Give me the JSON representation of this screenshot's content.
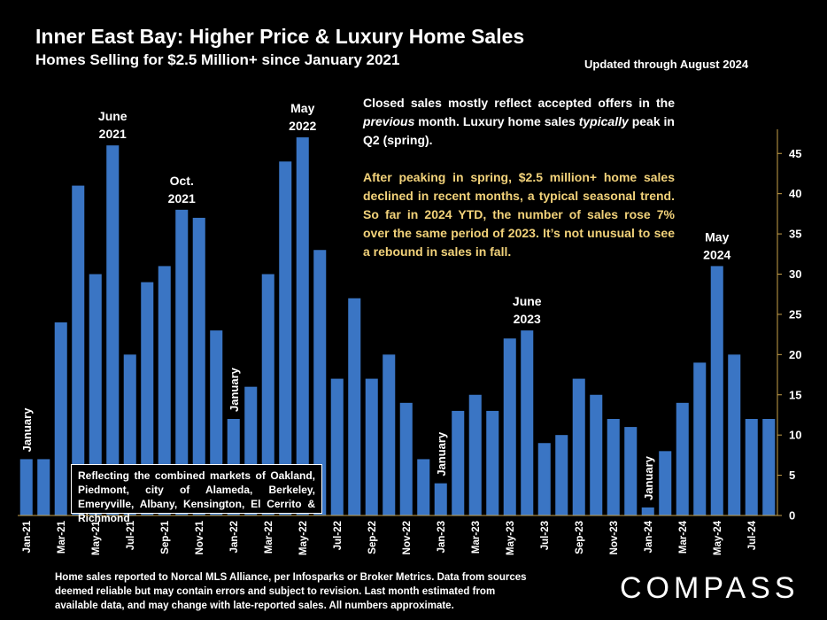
{
  "title": "Inner East Bay: Higher Price & Luxury Home Sales",
  "subtitle": "Homes Selling for $2.5 Million+ since January 2021",
  "updated": "Updated through August 2024",
  "note": {
    "p1_a": "Closed sales mostly reflect accepted offers in the ",
    "p1_em1": "previous",
    "p1_b": " month. Luxury home sales ",
    "p1_em2": "typically",
    "p1_c": " peak in Q2 (spring).",
    "p2": "After peaking in spring, $2.5 million+ home sales declined in recent months, a typical seasonal trend. So far in 2024 YTD, the number of sales rose 7% over the same period of 2023. It’s not unusual to see a rebound in sales in fall."
  },
  "markets_box": "Reflecting the combined markets of Oakland, Piedmont, city of Alameda, Berkeley, Emeryville, Albany, Kensington, El Cerrito & Richmond",
  "footer": "Home sales reported to Norcal MLS Alliance, per Infosparks or Broker Metrics. Data from sources deemed reliable but may contain errors and subject to revision.  Last month estimated from available data, and may change with late-reported sales. All numbers approximate.",
  "logo": "COMPASS",
  "colors": {
    "bar": "#3a75c4",
    "axis": "#c8a24a",
    "highlight": "#f2d27a"
  },
  "chart_data": {
    "type": "bar",
    "categories": [
      "Jan-21",
      "Feb-21",
      "Mar-21",
      "Apr-21",
      "May-21",
      "Jun-21",
      "Jul-21",
      "Aug-21",
      "Sep-21",
      "Oct-21",
      "Nov-21",
      "Dec-21",
      "Jan-22",
      "Feb-22",
      "Mar-22",
      "Apr-22",
      "May-22",
      "Jun-22",
      "Jul-22",
      "Aug-22",
      "Sep-22",
      "Oct-22",
      "Nov-22",
      "Dec-22",
      "Jan-23",
      "Feb-23",
      "Mar-23",
      "Apr-23",
      "May-23",
      "Jun-23",
      "Jul-23",
      "Aug-23",
      "Sep-23",
      "Oct-23",
      "Nov-23",
      "Dec-23",
      "Jan-24",
      "Feb-24",
      "Mar-24",
      "Apr-24",
      "May-24",
      "Jun-24",
      "Jul-24",
      "Aug-24"
    ],
    "values": [
      7,
      7,
      24,
      41,
      30,
      46,
      20,
      29,
      31,
      38,
      37,
      23,
      12,
      16,
      30,
      44,
      47,
      33,
      17,
      27,
      17,
      20,
      14,
      7,
      4,
      13,
      15,
      13,
      22,
      23,
      9,
      10,
      17,
      15,
      12,
      11,
      1,
      8,
      14,
      19,
      31,
      20,
      12,
      12
    ],
    "tick_labels": [
      "Jan-21",
      "Mar-21",
      "May-21",
      "Jul-21",
      "Sep-21",
      "Nov-21",
      "Jan-22",
      "Mar-22",
      "May-22",
      "Jul-22",
      "Sep-22",
      "Nov-22",
      "Jan-23",
      "Mar-23",
      "May-23",
      "Jul-23",
      "Sep-23",
      "Nov-23",
      "Jan-24",
      "Mar-24",
      "May-24",
      "Jul-24"
    ],
    "y_ticks": [
      0,
      5,
      10,
      15,
      20,
      25,
      30,
      35,
      40,
      45
    ],
    "ylim": [
      0,
      48
    ],
    "y_axis_side": "right",
    "grid": false,
    "annotations": [
      {
        "index": 0,
        "lines": [
          "January"
        ],
        "vertical": true
      },
      {
        "index": 5,
        "lines": [
          "June",
          "2021"
        ]
      },
      {
        "index": 9,
        "lines": [
          "Oct.",
          "2021"
        ]
      },
      {
        "index": 12,
        "lines": [
          "January"
        ],
        "vertical": true
      },
      {
        "index": 16,
        "lines": [
          "May",
          "2022"
        ]
      },
      {
        "index": 24,
        "lines": [
          "January"
        ],
        "vertical": true
      },
      {
        "index": 29,
        "lines": [
          "June",
          "2023"
        ]
      },
      {
        "index": 36,
        "lines": [
          "January"
        ],
        "vertical": true
      },
      {
        "index": 40,
        "lines": [
          "May",
          "2024"
        ]
      }
    ]
  }
}
